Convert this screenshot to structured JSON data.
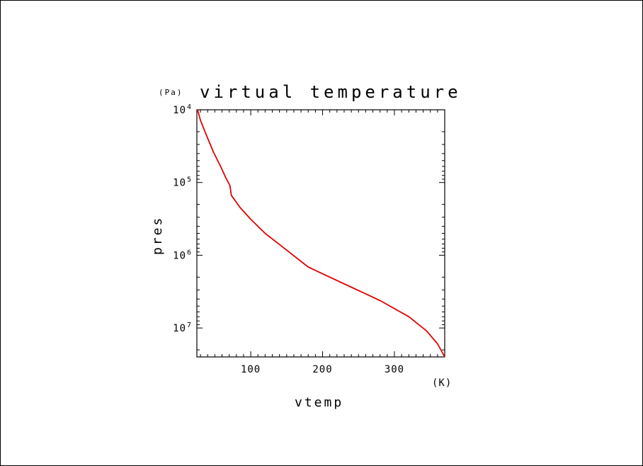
{
  "chart_data": {
    "type": "line",
    "title": "virtual temperature",
    "ylabel": "pres",
    "y_unit": "(Pa)",
    "xlabel": "vtemp",
    "x_unit": "(K)",
    "xlim": [
      25,
      370
    ],
    "ylim": [
      10000,
      25000000
    ],
    "y_scale": "log",
    "y_direction": "increasing downward",
    "x_ticks": [
      {
        "value": 100,
        "label": "100"
      },
      {
        "value": 200,
        "label": "200"
      },
      {
        "value": 300,
        "label": "300"
      }
    ],
    "y_ticks": [
      {
        "value": 10000,
        "base": "10",
        "exp": "4"
      },
      {
        "value": 100000,
        "base": "10",
        "exp": "5"
      },
      {
        "value": 1000000,
        "base": "10",
        "exp": "6"
      },
      {
        "value": 10000000,
        "base": "10",
        "exp": "7"
      }
    ],
    "grid": false,
    "series": [
      {
        "color": "#e00000",
        "x": [
          26,
          30,
          38,
          48,
          58,
          65,
          71,
          73,
          85,
          100,
          120,
          150,
          180,
          200,
          240,
          280,
          320,
          345,
          360,
          370
        ],
        "y": [
          10000,
          14000,
          22000,
          38000,
          60000,
          85000,
          110000,
          150000,
          220000,
          320000,
          500000,
          850000,
          1450000,
          1800000,
          2750000,
          4200000,
          7000000,
          11000000,
          16500000,
          25000000
        ]
      }
    ]
  }
}
